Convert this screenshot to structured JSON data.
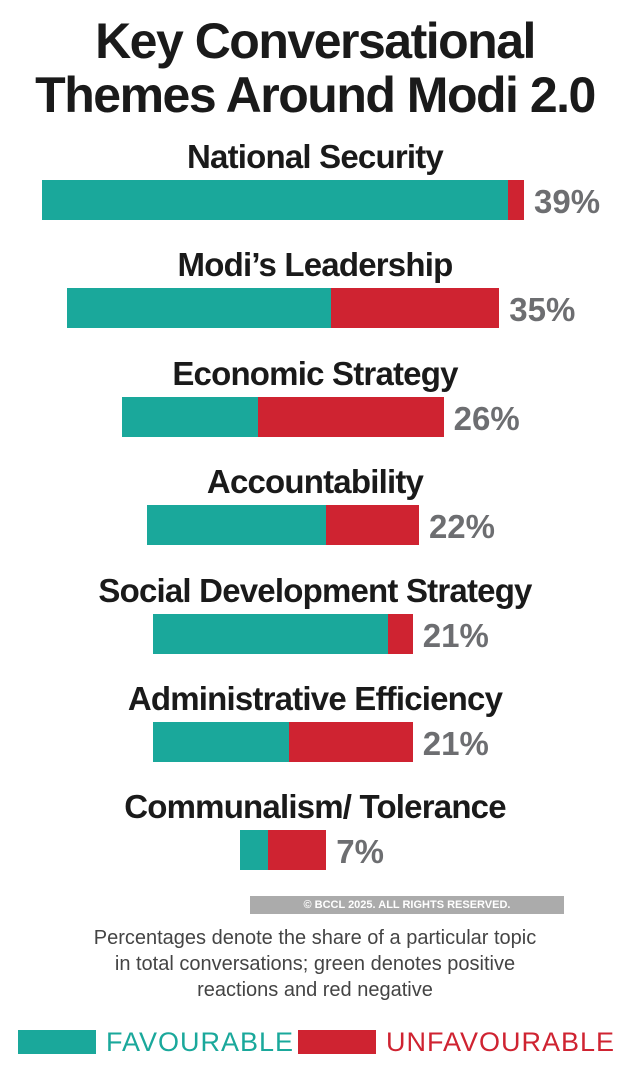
{
  "chart_data": {
    "type": "bar",
    "orientation": "horizontal",
    "stacked": true,
    "title": "Key Conversational Themes Around Modi 2.0",
    "title_lines": [
      "Key Conversational",
      "Themes Around Modi 2.0"
    ],
    "categories": [
      "National Security",
      "Modi’s Leadership",
      "Economic Strategy",
      "Accountability",
      "Social Development Strategy",
      "Administrative Efficiency",
      "Communalism/ Tolerance"
    ],
    "totals": [
      39,
      35,
      26,
      22,
      21,
      21,
      7
    ],
    "total_labels": [
      "39%",
      "35%",
      "26%",
      "22%",
      "21%",
      "21%",
      "7%"
    ],
    "series": [
      {
        "name": "FAVOURABLE",
        "color": "#1aa89b",
        "values": [
          37.7,
          21.4,
          11,
          14.5,
          19,
          11,
          2.3
        ]
      },
      {
        "name": "UNFAVOURABLE",
        "color": "#cf2331",
        "values": [
          1.3,
          13.6,
          15,
          7.5,
          2,
          10,
          4.7
        ]
      }
    ],
    "legend_position": "bottom",
    "grid": false,
    "note_lines": [
      "Percentages denote the share of a particular topic",
      "in total conversations; green denotes positive",
      "reactions and red negative"
    ],
    "watermark": "© BCCL 2025. ALL RIGHTS RESERVED."
  }
}
